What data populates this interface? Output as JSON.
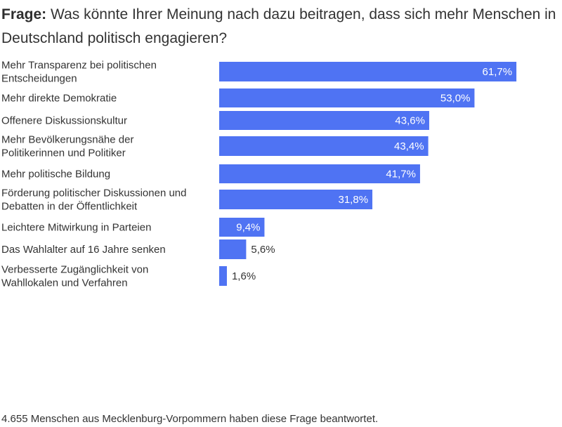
{
  "title": {
    "prefix": "Frage:",
    "text": "Was könnte Ihrer Meinung nach dazu beitragen, dass sich mehr Menschen in Deutschland politisch engagieren?"
  },
  "footnote": "4.655 Menschen aus Mecklenburg-Vorpommern haben diese Frage beantwortet.",
  "colors": {
    "bar": "#4f73f3",
    "label_inside": "#ffffff",
    "label_outside": "#333333",
    "text": "#333333"
  },
  "chart_data": {
    "type": "bar",
    "orientation": "horizontal",
    "unit": "%",
    "xlim": [
      0,
      70
    ],
    "grid": false,
    "categories": [
      [
        "Mehr Transparenz bei politischen",
        "Entscheidungen"
      ],
      [
        "Mehr direkte Demokratie"
      ],
      [
        "Offenere Diskussionskultur"
      ],
      [
        "Mehr Bevölkerungsnähe der",
        "Politikerinnen und Politiker"
      ],
      [
        "Mehr politische Bildung"
      ],
      [
        "Förderung politischer Diskussionen und",
        "Debatten in der Öffentlichkeit"
      ],
      [
        "Leichtere Mitwirkung in Parteien"
      ],
      [
        "Das Wahlalter auf 16 Jahre senken"
      ],
      [
        "Verbesserte Zugänglichkeit von",
        "Wahllokalen und Verfahren"
      ]
    ],
    "values": [
      61.7,
      53.0,
      43.6,
      43.4,
      41.7,
      31.8,
      9.4,
      5.6,
      1.6
    ],
    "value_labels": [
      "61,7%",
      "53,0%",
      "43,6%",
      "43,4%",
      "41,7%",
      "31,8%",
      "9,4%",
      "5,6%",
      "1,6%"
    ]
  }
}
